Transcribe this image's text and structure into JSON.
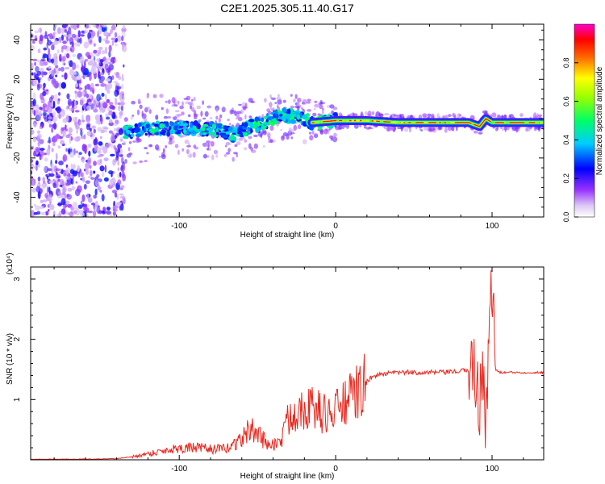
{
  "title": "C2E1.2025.305.11.40.G17",
  "chart_data": [
    {
      "type": "heatmap",
      "name": "spectrogram",
      "xlabel": "Height of straight line (km)",
      "ylabel": "Frequency (Hz)",
      "xlim": [
        -195,
        133
      ],
      "ylim": [
        -50,
        48
      ],
      "x_ticks": [
        -100,
        0,
        100
      ],
      "x_tick_labels": [
        "-100",
        "0",
        "100"
      ],
      "y_ticks": [
        -40,
        -20,
        0,
        20,
        40
      ],
      "y_tick_labels": [
        "-40",
        "-20",
        "0",
        "20",
        "40"
      ],
      "colorbar": {
        "label": "Normalized spectral amplitude",
        "range": [
          0.0,
          1.0
        ],
        "ticks": [
          0.0,
          0.2,
          0.4,
          0.6,
          0.8
        ],
        "tick_labels": [
          "0.0",
          "0.2",
          "0.4",
          "0.6",
          "0.8"
        ],
        "colormap": [
          "#ffffff",
          "#9933ff",
          "#0000ff",
          "#00ffff",
          "#00ff00",
          "#ffff00",
          "#ff0000",
          "#ff00ff"
        ]
      },
      "ridge": {
        "x": [
          -135,
          -120,
          -100,
          -80,
          -65,
          -55,
          -45,
          -35,
          -25,
          -15,
          0,
          20,
          40,
          60,
          75,
          85,
          92,
          96,
          100,
          133
        ],
        "y": [
          -7,
          -5,
          -5,
          -5,
          -8,
          -4,
          -2,
          2,
          1,
          -2,
          -1,
          -1,
          -2,
          -2,
          -2,
          -2,
          -4,
          0,
          -2,
          -2
        ]
      },
      "noise_region_x": [
        -195,
        -135
      ]
    },
    {
      "type": "line",
      "name": "snr",
      "xlabel": "Height of straight line (km)",
      "ylabel": "SNR (10 * v/v)",
      "y_multiplier": "(x10⁴)",
      "xlim": [
        -195,
        133
      ],
      "ylim": [
        0,
        3.2
      ],
      "x_ticks": [
        -100,
        0,
        100
      ],
      "x_tick_labels": [
        "-100",
        "0",
        "100"
      ],
      "y_ticks": [
        1,
        2,
        3
      ],
      "y_tick_labels": [
        "1",
        "2",
        "3"
      ],
      "series": [
        {
          "name": "SNR",
          "color": "#e8281e",
          "x": [
            -195,
            -160,
            -140,
            -130,
            -120,
            -110,
            -100,
            -90,
            -80,
            -70,
            -60,
            -55,
            -50,
            -45,
            -40,
            -35,
            -30,
            -25,
            -20,
            -15,
            -10,
            -5,
            0,
            5,
            10,
            15,
            20,
            25,
            30,
            40,
            50,
            60,
            70,
            80,
            85,
            88,
            90,
            92,
            94,
            96,
            98,
            100,
            102,
            105,
            110,
            120,
            133
          ],
          "y": [
            0.01,
            0.01,
            0.02,
            0.05,
            0.1,
            0.15,
            0.2,
            0.2,
            0.18,
            0.18,
            0.35,
            0.5,
            0.45,
            0.3,
            0.25,
            0.3,
            0.7,
            0.85,
            0.9,
            0.85,
            0.8,
            0.75,
            0.8,
            0.95,
            1.0,
            1.15,
            1.3,
            1.4,
            1.42,
            1.45,
            1.45,
            1.45,
            1.45,
            1.47,
            1.5,
            1.6,
            1.3,
            0.8,
            1.8,
            0.5,
            2.0,
            3.1,
            1.5,
            1.45,
            1.45,
            1.45,
            1.45
          ]
        }
      ]
    }
  ]
}
